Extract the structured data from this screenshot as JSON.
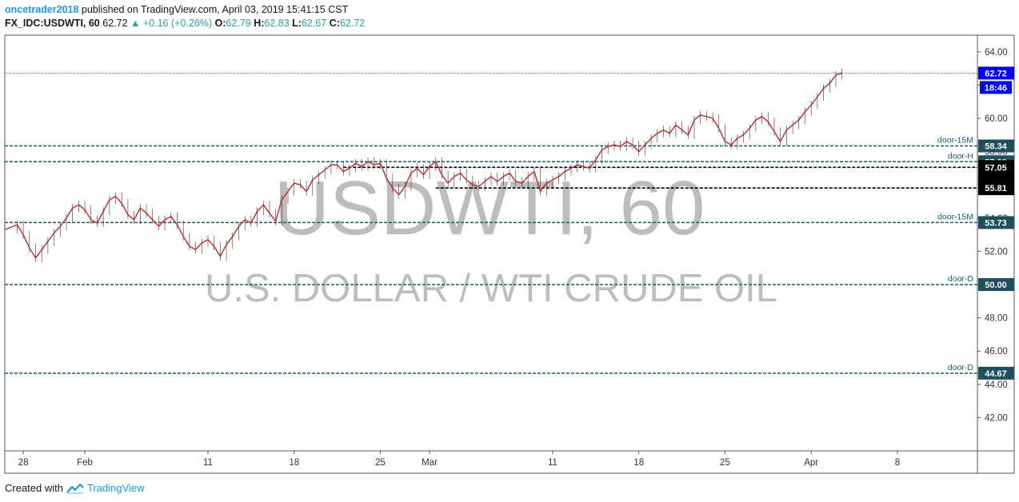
{
  "header": {
    "author": "oncetrader2018",
    "published_text": "published on TradingView.com, April 03, 2019 15:41:15 CST",
    "symbol": "FX_IDC:USDWTI, 60",
    "last": "62.72",
    "change": "+0.16 (+0.26%)",
    "o_label": "O:",
    "o": "62.79",
    "h_label": "H:",
    "h": "62.83",
    "l_label": "L:",
    "l": "62.67",
    "c_label": "C:",
    "c": "62.72"
  },
  "footer": {
    "created_with": "Created with",
    "brand": "TradingView"
  },
  "colors": {
    "up": "#26a69a",
    "candle": "#c62828",
    "level_line": "#1b5e6b",
    "level_tag": "#1e4f5c",
    "black_tag": "#000000",
    "price_tag": "#0000ff",
    "watermark": "#bdbdbd",
    "axis": "#555555"
  },
  "chart_data": {
    "type": "line",
    "title": "",
    "watermark_symbol": "USDWTI, 60",
    "watermark_name": "U.S. DOLLAR / WTI CRUDE OIL",
    "ylim": [
      40.0,
      65.0
    ],
    "y_ticks": [
      "42.00",
      "44.00",
      "46.00",
      "48.00",
      "50.00",
      "52.00",
      "54.00",
      "56.00",
      "58.00",
      "60.00",
      "62.00",
      "64.00"
    ],
    "x_ticks": [
      {
        "label": "28",
        "day": -4
      },
      {
        "label": "Feb",
        "day": 1
      },
      {
        "label": "11",
        "day": 11
      },
      {
        "label": "18",
        "day": 18
      },
      {
        "label": "25",
        "day": 25
      },
      {
        "label": "Mar",
        "day": 29
      },
      {
        "label": "11",
        "day": 39
      },
      {
        "label": "18",
        "day": 46
      },
      {
        "label": "25",
        "day": 53
      },
      {
        "label": "Apr",
        "day": 60
      },
      {
        "label": "8",
        "day": 67
      }
    ],
    "xlim_days": [
      -5.5,
      73.5
    ],
    "levels": [
      {
        "name": "door-15M",
        "value": 58.34,
        "tag": "58.34"
      },
      {
        "name": "door-H",
        "value": 57.39,
        "tag": "57.39"
      },
      {
        "name": "door-15M",
        "value": 53.73,
        "tag": "53.73"
      },
      {
        "name": "door-D",
        "value": 50.0,
        "tag": "50.00"
      },
      {
        "name": "door-D",
        "value": 44.67,
        "tag": "44.67"
      }
    ],
    "black_levels": [
      {
        "value": 57.05,
        "tag": "57.05"
      },
      {
        "value": 55.81,
        "tag": "55.81"
      }
    ],
    "current_price": {
      "value": 62.72,
      "tag": "62.72",
      "countdown": "18:46"
    },
    "series": [
      {
        "values_xy": [
          [
            -5.5,
            53.3
          ],
          [
            -4.5,
            53.6
          ],
          [
            -4.0,
            53.0
          ],
          [
            -3.5,
            52.2
          ],
          [
            -3.0,
            51.6
          ],
          [
            -2.5,
            52.1
          ],
          [
            -2.0,
            52.6
          ],
          [
            -1.5,
            53.1
          ],
          [
            -1.0,
            53.5
          ],
          [
            -0.5,
            54.0
          ],
          [
            0.0,
            54.6
          ],
          [
            0.5,
            54.8
          ],
          [
            1.0,
            54.5
          ],
          [
            1.5,
            53.9
          ],
          [
            2.0,
            53.7
          ],
          [
            2.5,
            54.4
          ],
          [
            3.0,
            55.1
          ],
          [
            3.5,
            55.3
          ],
          [
            4.0,
            54.9
          ],
          [
            4.5,
            54.2
          ],
          [
            5.0,
            53.9
          ],
          [
            5.5,
            54.6
          ],
          [
            6.0,
            54.3
          ],
          [
            6.5,
            53.9
          ],
          [
            7.0,
            53.5
          ],
          [
            7.5,
            53.9
          ],
          [
            8.0,
            54.1
          ],
          [
            8.5,
            53.6
          ],
          [
            9.0,
            52.9
          ],
          [
            9.5,
            52.3
          ],
          [
            10.0,
            52.1
          ],
          [
            10.5,
            52.5
          ],
          [
            11.0,
            52.7
          ],
          [
            11.5,
            52.3
          ],
          [
            12.0,
            51.7
          ],
          [
            12.5,
            52.4
          ],
          [
            13.0,
            52.9
          ],
          [
            13.5,
            53.5
          ],
          [
            14.0,
            53.9
          ],
          [
            14.5,
            53.7
          ],
          [
            15.0,
            54.4
          ],
          [
            15.5,
            54.8
          ],
          [
            16.0,
            54.3
          ],
          [
            16.5,
            53.8
          ],
          [
            17.0,
            55.1
          ],
          [
            17.5,
            55.6
          ],
          [
            18.0,
            56.1
          ],
          [
            18.5,
            56.0
          ],
          [
            19.0,
            55.6
          ],
          [
            19.5,
            56.3
          ],
          [
            20.0,
            56.6
          ],
          [
            20.5,
            56.9
          ],
          [
            21.0,
            57.2
          ],
          [
            21.5,
            57.2
          ],
          [
            22.0,
            56.8
          ],
          [
            22.5,
            57.0
          ],
          [
            23.0,
            57.3
          ],
          [
            23.5,
            57.1
          ],
          [
            24.0,
            57.4
          ],
          [
            24.5,
            57.2
          ],
          [
            25.0,
            57.3
          ],
          [
            25.5,
            56.4
          ],
          [
            26.0,
            55.8
          ],
          [
            26.5,
            55.4
          ],
          [
            27.0,
            55.9
          ],
          [
            27.5,
            56.7
          ],
          [
            28.0,
            57.0
          ],
          [
            28.5,
            56.6
          ],
          [
            29.0,
            57.1
          ],
          [
            29.5,
            57.4
          ],
          [
            30.0,
            56.6
          ],
          [
            30.5,
            56.1
          ],
          [
            31.0,
            56.5
          ],
          [
            31.5,
            56.7
          ],
          [
            32.0,
            56.3
          ],
          [
            32.5,
            56.0
          ],
          [
            33.0,
            55.9
          ],
          [
            33.5,
            56.2
          ],
          [
            34.0,
            56.5
          ],
          [
            34.5,
            56.2
          ],
          [
            35.0,
            56.5
          ],
          [
            35.5,
            56.7
          ],
          [
            36.0,
            56.2
          ],
          [
            36.5,
            56.1
          ],
          [
            37.0,
            56.5
          ],
          [
            37.5,
            56.8
          ],
          [
            38.0,
            55.6
          ],
          [
            38.5,
            56.1
          ],
          [
            39.0,
            56.3
          ],
          [
            39.5,
            56.5
          ],
          [
            40.0,
            56.8
          ],
          [
            40.5,
            57.0
          ],
          [
            41.0,
            57.2
          ],
          [
            41.5,
            57.1
          ],
          [
            42.0,
            57.0
          ],
          [
            42.5,
            57.5
          ],
          [
            43.0,
            58.1
          ],
          [
            43.5,
            58.3
          ],
          [
            44.0,
            58.4
          ],
          [
            44.5,
            58.3
          ],
          [
            45.0,
            58.6
          ],
          [
            45.5,
            58.4
          ],
          [
            46.0,
            58.0
          ],
          [
            46.5,
            58.4
          ],
          [
            47.0,
            58.8
          ],
          [
            47.5,
            59.1
          ],
          [
            48.0,
            59.3
          ],
          [
            48.5,
            59.1
          ],
          [
            49.0,
            59.6
          ],
          [
            49.5,
            59.3
          ],
          [
            50.0,
            59.0
          ],
          [
            50.5,
            59.9
          ],
          [
            51.0,
            60.2
          ],
          [
            51.5,
            60.1
          ],
          [
            52.0,
            60.0
          ],
          [
            52.5,
            59.4
          ],
          [
            53.0,
            58.6
          ],
          [
            53.5,
            58.4
          ],
          [
            54.0,
            58.8
          ],
          [
            54.5,
            59.0
          ],
          [
            55.0,
            59.4
          ],
          [
            55.5,
            59.9
          ],
          [
            56.0,
            60.1
          ],
          [
            56.5,
            59.8
          ],
          [
            57.0,
            59.2
          ],
          [
            57.5,
            58.6
          ],
          [
            58.0,
            59.3
          ],
          [
            58.5,
            59.6
          ],
          [
            59.0,
            59.9
          ],
          [
            59.5,
            60.4
          ],
          [
            60.0,
            60.8
          ],
          [
            60.5,
            61.3
          ],
          [
            61.0,
            61.8
          ],
          [
            61.5,
            62.1
          ],
          [
            62.0,
            62.6
          ],
          [
            62.5,
            62.72
          ]
        ]
      }
    ]
  }
}
